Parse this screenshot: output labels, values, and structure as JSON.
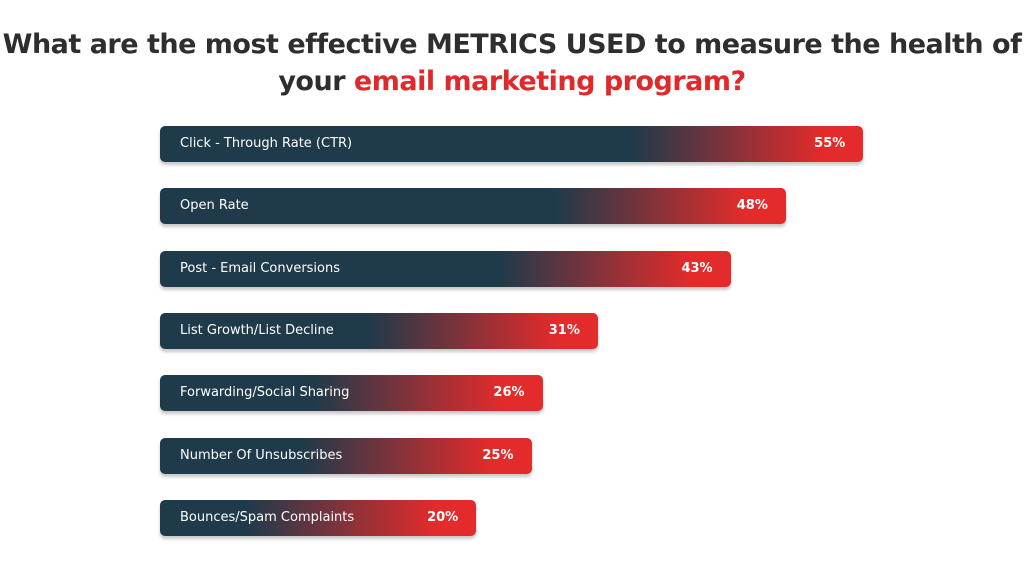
{
  "chart_data": {
    "type": "bar",
    "orientation": "horizontal",
    "title_part1": "What are the most effective METRICS USED  to measure the health of your",
    "title_highlight": "email marketing program?",
    "categories": [
      "Click - Through Rate (CTR)",
      "Open Rate",
      "Post - Email Conversions",
      "List Growth/List Decline",
      "Forwarding/Social Sharing",
      "Number Of Unsubscribes",
      "Bounces/Spam Complaints"
    ],
    "values": [
      55,
      48,
      43,
      31,
      26,
      25,
      20
    ],
    "value_labels": [
      "55%",
      "48%",
      "43%",
      "31%",
      "26%",
      "25%",
      "20%"
    ],
    "unit": "%",
    "grid": false,
    "colors": {
      "bar_dark": "#1f3a4a",
      "bar_red": "#e32b2b",
      "title": "#2e2e2e",
      "highlight": "#e1282b"
    }
  }
}
